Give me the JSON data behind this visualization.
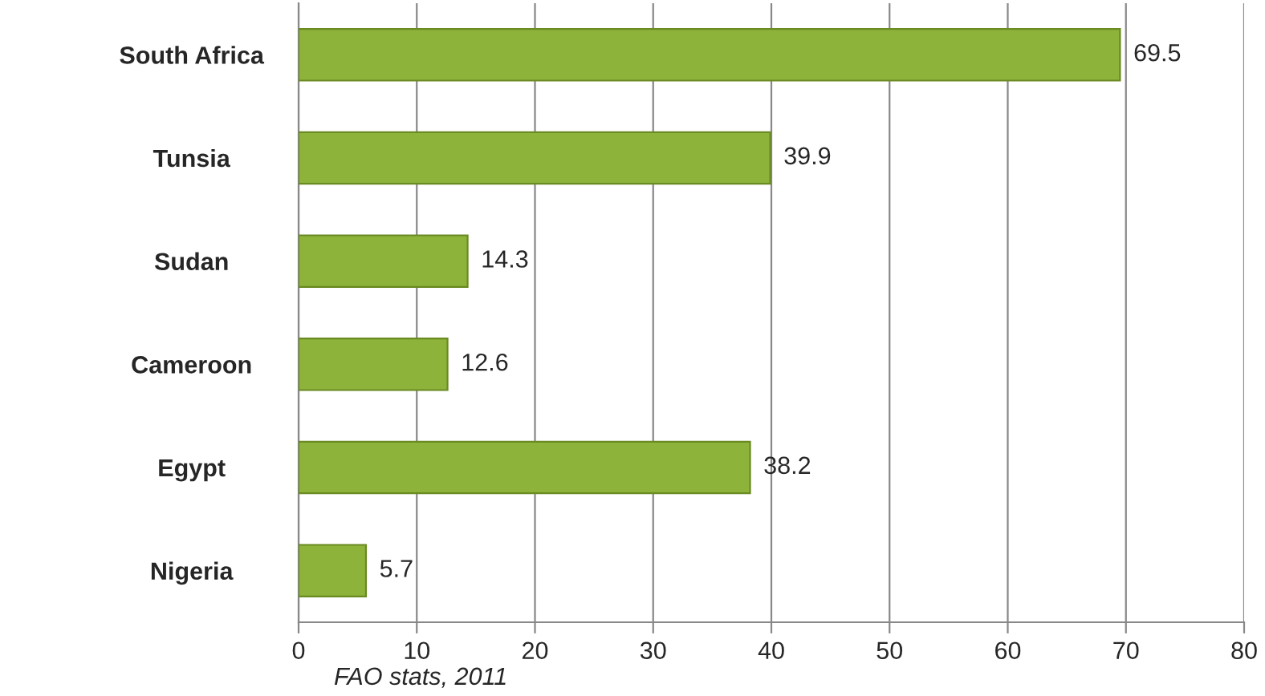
{
  "chart_data": {
    "type": "bar",
    "orientation": "horizontal",
    "categories": [
      "South Africa",
      "Tunsia",
      "Sudan",
      "Cameroon",
      "Egypt",
      "Nigeria"
    ],
    "values": [
      69.5,
      39.9,
      14.3,
      12.6,
      38.2,
      5.7
    ],
    "color": "#8db33a",
    "xlim": [
      0,
      80
    ],
    "xticks": [
      0,
      10,
      20,
      30,
      40,
      50,
      60,
      70,
      80
    ],
    "grid": "x",
    "data_labels": true,
    "annotations": [
      "FAO stats, 2011"
    ]
  }
}
